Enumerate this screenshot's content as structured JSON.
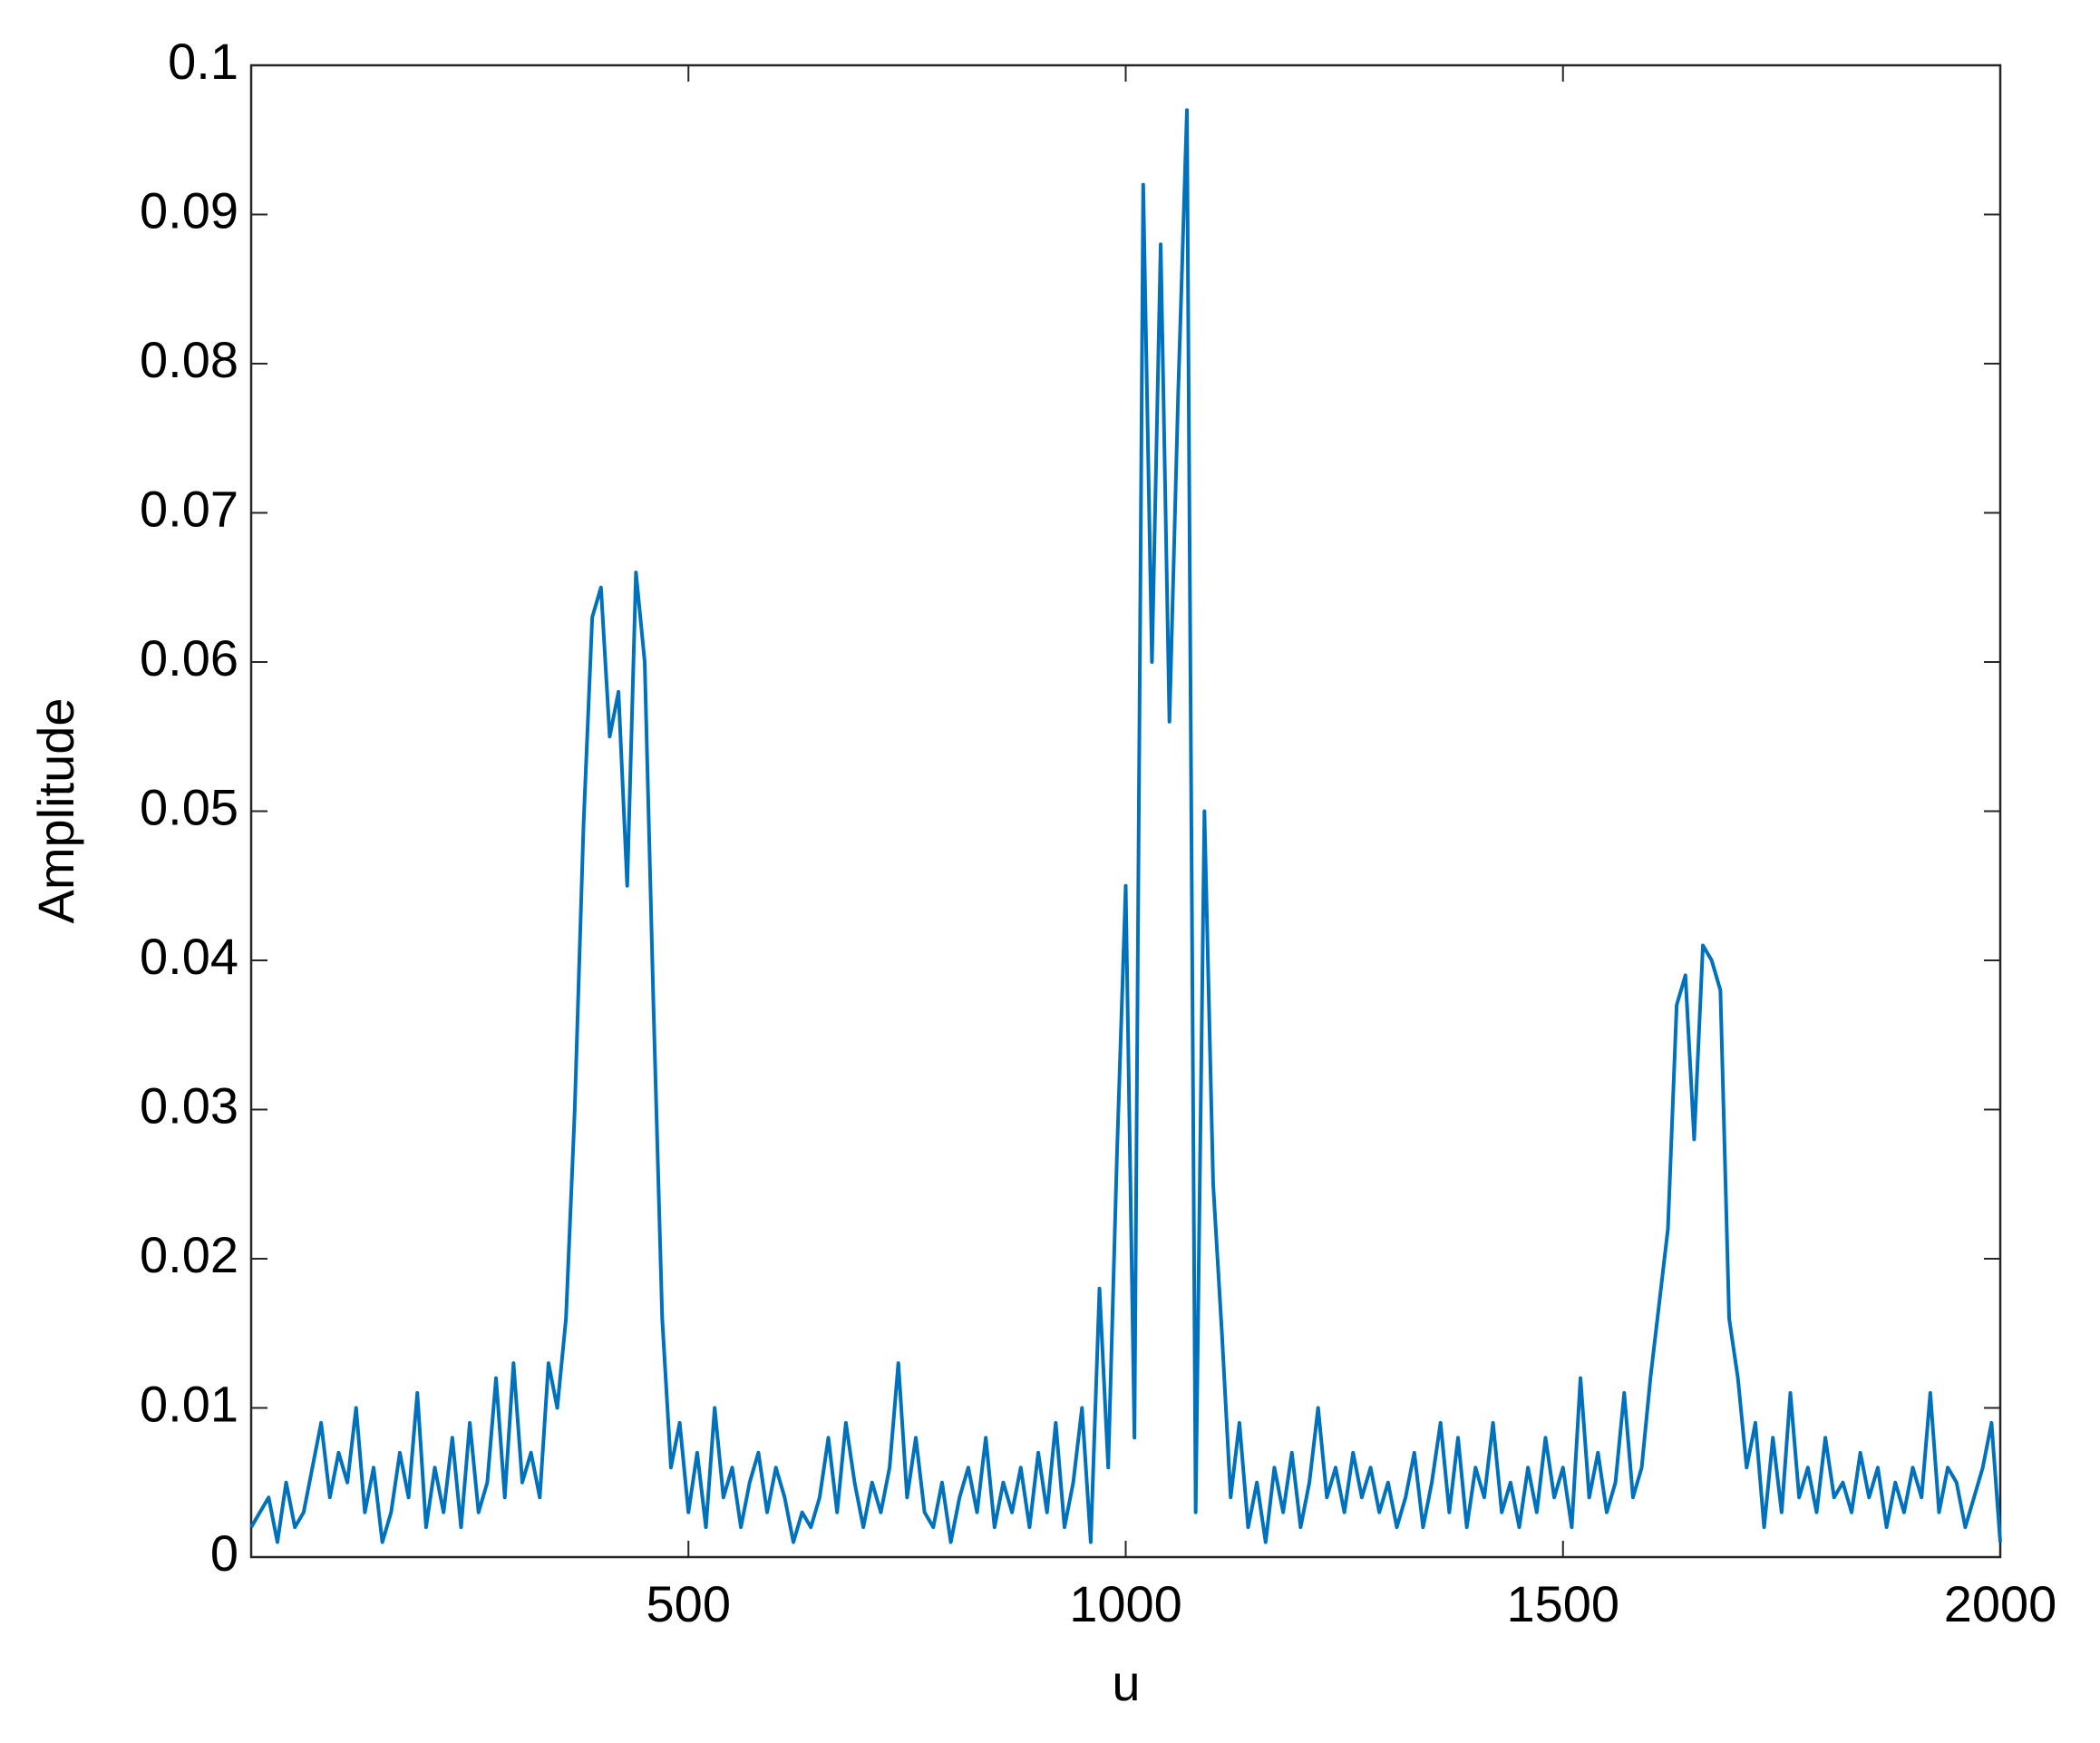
{
  "chart_data": {
    "type": "line",
    "xlabel": "u",
    "ylabel": "Amplitude",
    "xlim": [
      0,
      2000
    ],
    "xticks": [
      500,
      1000,
      1500,
      2000
    ],
    "ylim": [
      0,
      0.1
    ],
    "yticks": [
      0,
      0.01,
      0.02,
      0.03,
      0.04,
      0.05,
      0.06,
      0.07,
      0.08,
      0.09,
      0.1
    ],
    "grid": false,
    "x": [
      0,
      10,
      20,
      30,
      40,
      50,
      60,
      70,
      80,
      90,
      100,
      110,
      120,
      130,
      140,
      150,
      160,
      170,
      180,
      190,
      200,
      210,
      220,
      230,
      240,
      250,
      260,
      270,
      280,
      290,
      300,
      310,
      320,
      330,
      340,
      350,
      360,
      370,
      380,
      390,
      400,
      410,
      420,
      430,
      440,
      450,
      460,
      470,
      480,
      490,
      500,
      510,
      520,
      530,
      540,
      550,
      560,
      570,
      580,
      590,
      600,
      610,
      620,
      630,
      640,
      650,
      660,
      670,
      680,
      690,
      700,
      710,
      720,
      730,
      740,
      750,
      760,
      770,
      780,
      790,
      800,
      810,
      820,
      830,
      840,
      850,
      860,
      870,
      880,
      890,
      900,
      910,
      920,
      930,
      940,
      950,
      960,
      970,
      980,
      990,
      1000,
      1010,
      1020,
      1030,
      1040,
      1050,
      1060,
      1070,
      1080,
      1090,
      1100,
      1110,
      1120,
      1130,
      1140,
      1150,
      1160,
      1170,
      1180,
      1190,
      1200,
      1210,
      1220,
      1230,
      1240,
      1250,
      1260,
      1270,
      1280,
      1290,
      1300,
      1310,
      1320,
      1330,
      1340,
      1350,
      1360,
      1370,
      1380,
      1390,
      1400,
      1410,
      1420,
      1430,
      1440,
      1450,
      1460,
      1470,
      1480,
      1490,
      1500,
      1510,
      1520,
      1530,
      1540,
      1550,
      1560,
      1570,
      1580,
      1590,
      1600,
      1610,
      1620,
      1630,
      1640,
      1650,
      1660,
      1670,
      1680,
      1690,
      1700,
      1710,
      1720,
      1730,
      1740,
      1750,
      1760,
      1770,
      1780,
      1790,
      1800,
      1810,
      1820,
      1830,
      1840,
      1850,
      1860,
      1870,
      1880,
      1890,
      1900,
      1910,
      1920,
      1930,
      1940,
      1950,
      1960,
      1970,
      1980,
      1990,
      2000
    ],
    "series": [
      {
        "color": "#0072bd",
        "values": [
          0.002,
          0.003,
          0.004,
          0.001,
          0.005,
          0.002,
          0.003,
          0.006,
          0.009,
          0.004,
          0.007,
          0.005,
          0.01,
          0.003,
          0.006,
          0.001,
          0.003,
          0.007,
          0.004,
          0.011,
          0.002,
          0.006,
          0.003,
          0.008,
          0.002,
          0.009,
          0.003,
          0.005,
          0.012,
          0.004,
          0.013,
          0.005,
          0.007,
          0.004,
          0.013,
          0.01,
          0.016,
          0.03,
          0.049,
          0.063,
          0.065,
          0.055,
          0.058,
          0.045,
          0.066,
          0.06,
          0.037,
          0.016,
          0.006,
          0.009,
          0.003,
          0.007,
          0.002,
          0.01,
          0.004,
          0.006,
          0.002,
          0.005,
          0.007,
          0.003,
          0.006,
          0.004,
          0.001,
          0.003,
          0.002,
          0.004,
          0.008,
          0.003,
          0.009,
          0.005,
          0.002,
          0.005,
          0.003,
          0.006,
          0.013,
          0.004,
          0.008,
          0.003,
          0.002,
          0.005,
          0.001,
          0.004,
          0.006,
          0.003,
          0.008,
          0.002,
          0.005,
          0.003,
          0.006,
          0.002,
          0.007,
          0.003,
          0.009,
          0.002,
          0.005,
          0.01,
          0.001,
          0.018,
          0.006,
          0.027,
          0.045,
          0.008,
          0.092,
          0.06,
          0.088,
          0.056,
          0.078,
          0.097,
          0.003,
          0.05,
          0.025,
          0.015,
          0.004,
          0.009,
          0.002,
          0.005,
          0.001,
          0.006,
          0.003,
          0.007,
          0.002,
          0.005,
          0.01,
          0.004,
          0.006,
          0.003,
          0.007,
          0.004,
          0.006,
          0.003,
          0.005,
          0.002,
          0.004,
          0.007,
          0.002,
          0.005,
          0.009,
          0.003,
          0.008,
          0.002,
          0.006,
          0.004,
          0.009,
          0.003,
          0.005,
          0.002,
          0.006,
          0.003,
          0.008,
          0.004,
          0.006,
          0.002,
          0.012,
          0.004,
          0.007,
          0.003,
          0.005,
          0.011,
          0.004,
          0.006,
          0.012,
          0.017,
          0.022,
          0.037,
          0.039,
          0.028,
          0.041,
          0.04,
          0.038,
          0.016,
          0.012,
          0.006,
          0.009,
          0.002,
          0.008,
          0.003,
          0.011,
          0.004,
          0.006,
          0.003,
          0.008,
          0.004,
          0.005,
          0.003,
          0.007,
          0.004,
          0.006,
          0.002,
          0.005,
          0.003,
          0.006,
          0.004,
          0.011,
          0.003,
          0.006,
          0.005,
          0.002,
          0.004,
          0.006,
          0.009,
          0.001
        ]
      }
    ]
  }
}
